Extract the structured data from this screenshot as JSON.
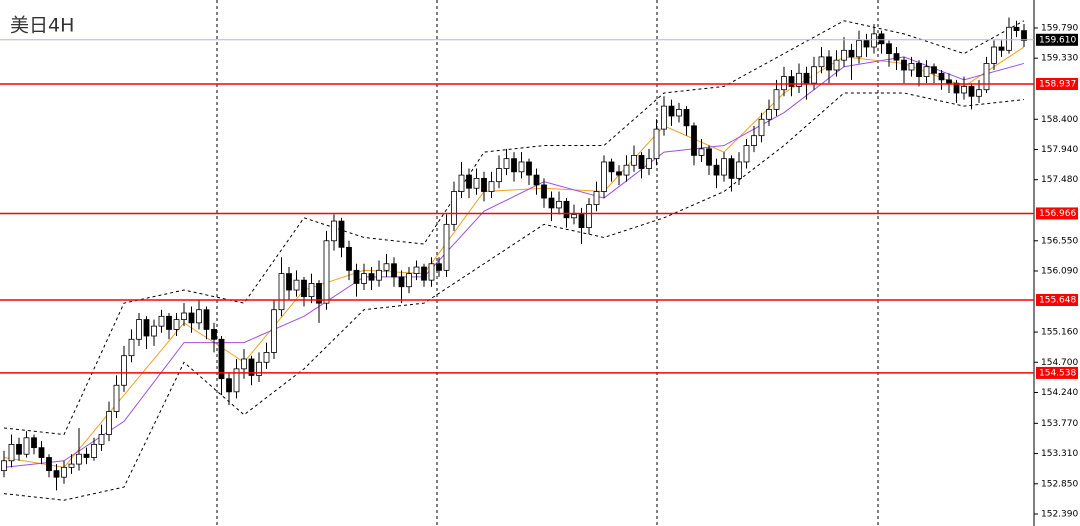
{
  "chart_data": {
    "type": "candlestick",
    "title": "美日4H",
    "up_color": "#ffffff",
    "down_color": "#000000",
    "ylim": [
      152.207,
      160.216
    ],
    "yticks": [
      {
        "value": 152.39,
        "label": "152.390"
      },
      {
        "value": 152.85,
        "label": "152.850"
      },
      {
        "value": 153.31,
        "label": "153.310"
      },
      {
        "value": 153.77,
        "label": "153.770"
      },
      {
        "value": 154.24,
        "label": "154.240"
      },
      {
        "value": 154.7,
        "label": "154.700"
      },
      {
        "value": 155.16,
        "label": "155.160"
      },
      {
        "value": 156.09,
        "label": "156.090"
      },
      {
        "value": 156.55,
        "label": "156.550"
      },
      {
        "value": 157.48,
        "label": "157.480"
      },
      {
        "value": 157.94,
        "label": "157.940"
      },
      {
        "value": 158.4,
        "label": "158.400"
      },
      {
        "value": 159.33,
        "label": "159.330"
      },
      {
        "value": 159.79,
        "label": "159.790"
      }
    ],
    "levels": [
      158.937,
      156.966,
      155.648,
      154.538
    ],
    "level_color": "#ff0000",
    "current_price": {
      "value": 159.61,
      "label": "159.610"
    },
    "candles": [
      [
        153.05,
        153.35,
        152.95,
        153.2
      ],
      [
        153.2,
        153.6,
        153.1,
        153.45
      ],
      [
        153.45,
        153.55,
        153.2,
        153.3
      ],
      [
        153.3,
        153.65,
        153.25,
        153.55
      ],
      [
        153.55,
        153.6,
        153.3,
        153.4
      ],
      [
        153.4,
        153.5,
        153.15,
        153.25
      ],
      [
        153.25,
        153.3,
        152.95,
        153.05
      ],
      [
        153.05,
        153.15,
        152.75,
        152.95
      ],
      [
        152.95,
        153.2,
        152.85,
        153.1
      ],
      [
        153.1,
        153.3,
        153.0,
        153.15
      ],
      [
        153.15,
        153.7,
        153.05,
        153.3
      ],
      [
        153.3,
        153.4,
        153.15,
        153.25
      ],
      [
        153.25,
        153.55,
        153.2,
        153.45
      ],
      [
        153.45,
        153.75,
        153.35,
        153.6
      ],
      [
        153.6,
        154.1,
        153.5,
        153.95
      ],
      [
        153.95,
        154.5,
        153.85,
        154.35
      ],
      [
        154.35,
        154.95,
        154.25,
        154.8
      ],
      [
        154.8,
        155.2,
        154.7,
        155.05
      ],
      [
        155.05,
        155.45,
        154.95,
        155.35
      ],
      [
        155.35,
        155.4,
        154.9,
        155.1
      ],
      [
        155.1,
        155.35,
        154.95,
        155.25
      ],
      [
        155.25,
        155.5,
        155.15,
        155.4
      ],
      [
        155.4,
        155.45,
        155.05,
        155.2
      ],
      [
        155.2,
        155.45,
        155.1,
        155.35
      ],
      [
        155.35,
        155.6,
        155.25,
        155.45
      ],
      [
        155.45,
        155.55,
        155.15,
        155.3
      ],
      [
        155.3,
        155.65,
        155.2,
        155.5
      ],
      [
        155.5,
        155.55,
        155.05,
        155.2
      ],
      [
        155.2,
        155.3,
        154.85,
        155.05
      ],
      [
        155.05,
        155.1,
        154.2,
        154.45
      ],
      [
        154.45,
        154.55,
        154.05,
        154.25
      ],
      [
        154.25,
        154.75,
        154.15,
        154.6
      ],
      [
        154.6,
        154.9,
        154.45,
        154.75
      ],
      [
        154.75,
        154.8,
        154.35,
        154.5
      ],
      [
        154.5,
        154.85,
        154.4,
        154.7
      ],
      [
        154.7,
        155.0,
        154.6,
        154.85
      ],
      [
        154.85,
        155.65,
        154.75,
        155.5
      ],
      [
        155.5,
        156.3,
        155.4,
        156.05
      ],
      [
        156.05,
        156.15,
        155.65,
        155.8
      ],
      [
        155.8,
        156.1,
        155.7,
        155.95
      ],
      [
        155.95,
        156.0,
        155.55,
        155.7
      ],
      [
        155.7,
        156.05,
        155.6,
        155.9
      ],
      [
        155.9,
        155.95,
        155.3,
        155.6
      ],
      [
        155.6,
        156.7,
        155.5,
        156.55
      ],
      [
        156.55,
        156.95,
        156.4,
        156.85
      ],
      [
        156.85,
        156.9,
        156.3,
        156.45
      ],
      [
        156.45,
        156.55,
        155.95,
        156.1
      ],
      [
        156.1,
        156.2,
        155.7,
        155.9
      ],
      [
        155.9,
        156.2,
        155.8,
        156.05
      ],
      [
        156.05,
        156.15,
        155.8,
        155.95
      ],
      [
        155.95,
        156.25,
        155.85,
        156.1
      ],
      [
        156.1,
        156.35,
        156.0,
        156.2
      ],
      [
        156.2,
        156.3,
        155.85,
        156.0
      ],
      [
        156.0,
        156.1,
        155.6,
        155.85
      ],
      [
        155.85,
        156.15,
        155.75,
        156.05
      ],
      [
        156.05,
        156.25,
        155.95,
        156.15
      ],
      [
        156.15,
        156.2,
        155.85,
        155.95
      ],
      [
        155.95,
        156.3,
        155.85,
        156.2
      ],
      [
        156.2,
        156.3,
        156.0,
        156.1
      ],
      [
        156.1,
        156.95,
        156.0,
        156.8
      ],
      [
        156.8,
        157.45,
        156.7,
        157.3
      ],
      [
        157.3,
        157.75,
        157.2,
        157.55
      ],
      [
        157.55,
        157.65,
        157.2,
        157.35
      ],
      [
        157.35,
        157.65,
        157.25,
        157.5
      ],
      [
        157.5,
        157.6,
        157.15,
        157.3
      ],
      [
        157.3,
        157.6,
        157.2,
        157.45
      ],
      [
        157.45,
        157.85,
        157.35,
        157.65
      ],
      [
        157.65,
        157.95,
        157.55,
        157.8
      ],
      [
        157.8,
        157.9,
        157.45,
        157.6
      ],
      [
        157.6,
        157.9,
        157.5,
        157.75
      ],
      [
        157.75,
        157.8,
        157.4,
        157.55
      ],
      [
        157.55,
        157.65,
        157.25,
        157.4
      ],
      [
        157.4,
        157.5,
        157.05,
        157.2
      ],
      [
        157.2,
        157.3,
        156.85,
        157.05
      ],
      [
        157.05,
        157.3,
        156.95,
        157.15
      ],
      [
        157.15,
        157.2,
        156.75,
        156.9
      ],
      [
        156.9,
        157.1,
        156.8,
        156.95
      ],
      [
        156.95,
        157.05,
        156.5,
        156.75
      ],
      [
        156.75,
        157.2,
        156.65,
        157.1
      ],
      [
        157.1,
        157.45,
        157.0,
        157.3
      ],
      [
        157.3,
        157.85,
        157.2,
        157.75
      ],
      [
        157.75,
        157.8,
        157.45,
        157.6
      ],
      [
        157.6,
        157.7,
        157.4,
        157.55
      ],
      [
        157.55,
        157.85,
        157.45,
        157.7
      ],
      [
        157.7,
        158.0,
        157.6,
        157.85
      ],
      [
        157.85,
        157.9,
        157.5,
        157.65
      ],
      [
        157.65,
        157.95,
        157.55,
        157.8
      ],
      [
        157.8,
        158.4,
        157.7,
        158.25
      ],
      [
        158.25,
        158.75,
        158.15,
        158.6
      ],
      [
        158.6,
        158.7,
        158.3,
        158.45
      ],
      [
        158.45,
        158.65,
        158.35,
        158.55
      ],
      [
        158.55,
        158.6,
        158.15,
        158.3
      ],
      [
        158.3,
        158.35,
        157.7,
        157.85
      ],
      [
        157.85,
        158.1,
        157.75,
        157.95
      ],
      [
        157.95,
        158.0,
        157.55,
        157.7
      ],
      [
        157.7,
        157.8,
        157.35,
        157.55
      ],
      [
        157.55,
        157.9,
        157.45,
        157.8
      ],
      [
        157.8,
        157.85,
        157.3,
        157.5
      ],
      [
        157.5,
        157.9,
        157.4,
        157.75
      ],
      [
        157.75,
        158.1,
        157.65,
        158.0
      ],
      [
        158.0,
        158.3,
        157.9,
        158.15
      ],
      [
        158.15,
        158.5,
        158.05,
        158.4
      ],
      [
        158.4,
        158.7,
        158.3,
        158.55
      ],
      [
        158.55,
        159.0,
        158.45,
        158.85
      ],
      [
        158.85,
        159.2,
        158.75,
        159.05
      ],
      [
        159.05,
        159.15,
        158.75,
        158.9
      ],
      [
        158.9,
        159.25,
        158.8,
        159.1
      ],
      [
        159.1,
        159.2,
        158.7,
        158.95
      ],
      [
        158.95,
        159.35,
        158.85,
        159.2
      ],
      [
        159.2,
        159.5,
        159.1,
        159.35
      ],
      [
        159.35,
        159.45,
        158.95,
        159.15
      ],
      [
        159.15,
        159.45,
        159.05,
        159.3
      ],
      [
        159.3,
        159.65,
        159.2,
        159.45
      ],
      [
        159.45,
        159.55,
        159.0,
        159.35
      ],
      [
        159.35,
        159.75,
        159.25,
        159.6
      ],
      [
        159.6,
        159.7,
        159.35,
        159.5
      ],
      [
        159.5,
        159.85,
        159.4,
        159.7
      ],
      [
        159.7,
        159.75,
        159.4,
        159.55
      ],
      [
        159.55,
        159.6,
        159.2,
        159.4
      ],
      [
        159.4,
        159.5,
        159.15,
        159.3
      ],
      [
        159.3,
        159.35,
        158.95,
        159.15
      ],
      [
        159.15,
        159.35,
        159.05,
        159.25
      ],
      [
        159.25,
        159.3,
        158.9,
        159.05
      ],
      [
        159.05,
        159.3,
        158.95,
        159.2
      ],
      [
        159.2,
        159.25,
        158.95,
        159.1
      ],
      [
        159.1,
        159.15,
        158.85,
        159.0
      ],
      [
        159.0,
        159.1,
        158.8,
        158.95
      ],
      [
        158.95,
        159.0,
        158.65,
        158.8
      ],
      [
        158.8,
        159.05,
        158.7,
        158.9
      ],
      [
        158.9,
        158.95,
        158.55,
        158.75
      ],
      [
        158.75,
        159.0,
        158.65,
        158.85
      ],
      [
        158.85,
        159.35,
        158.8,
        159.25
      ],
      [
        159.25,
        159.6,
        159.15,
        159.5
      ],
      [
        159.5,
        159.6,
        159.35,
        159.45
      ],
      [
        159.45,
        159.95,
        159.4,
        159.8
      ],
      [
        159.8,
        159.9,
        159.65,
        159.75
      ],
      [
        159.75,
        159.85,
        159.5,
        159.6
      ]
    ],
    "overlay_x": [
      0,
      8,
      16,
      24,
      32,
      40,
      48,
      56,
      64,
      72,
      80,
      88,
      96,
      104,
      112,
      120,
      128,
      136
    ],
    "lines": [
      {
        "color": "#f0a020",
        "dashed": false,
        "values": [
          153.25,
          153.1,
          154.2,
          155.3,
          154.7,
          155.8,
          156.1,
          156.05,
          157.3,
          157.35,
          157.3,
          158.3,
          157.9,
          158.8,
          159.35,
          159.25,
          158.9,
          159.5
        ]
      },
      {
        "color": "#a050e0",
        "dashed": false,
        "values": [
          153.1,
          153.2,
          153.8,
          155.0,
          155.0,
          155.4,
          156.0,
          156.0,
          157.0,
          157.45,
          157.2,
          157.9,
          158.0,
          158.5,
          159.2,
          159.35,
          159.0,
          159.25
        ]
      },
      {
        "color": "#000000",
        "dashed": true,
        "values": [
          153.7,
          153.6,
          155.6,
          155.8,
          155.6,
          156.9,
          156.6,
          156.5,
          157.9,
          158.0,
          158.0,
          158.8,
          158.9,
          159.4,
          159.9,
          159.7,
          159.4,
          159.9
        ]
      },
      {
        "color": "#000000",
        "dashed": true,
        "values": [
          152.7,
          152.6,
          152.8,
          154.7,
          153.9,
          154.6,
          155.5,
          155.6,
          156.2,
          156.8,
          156.6,
          156.9,
          157.3,
          158.0,
          158.8,
          158.8,
          158.6,
          158.7
        ]
      }
    ]
  }
}
